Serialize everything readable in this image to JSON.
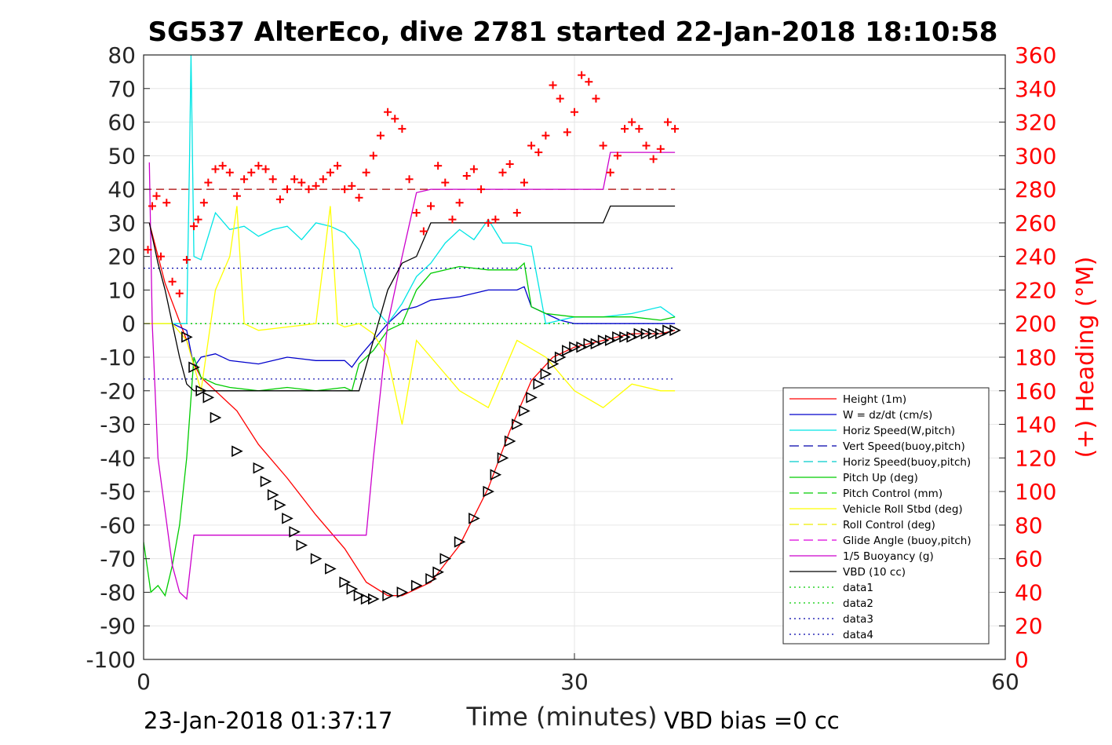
{
  "chart_data": {
    "type": "line",
    "title": "SG537 AlterEco, dive 2781 started 22-Jan-2018 18:10:58",
    "xlabel": "Time (minutes)",
    "ylabel_right": "(+) Heading (°M)",
    "footer_left": "23-Jan-2018 01:37:17",
    "footer_right": "VBD bias =0 cc",
    "xlim": [
      0,
      60
    ],
    "ylim": [
      -100,
      80
    ],
    "ylim_right": [
      0,
      360
    ],
    "x_ticks": [
      "0",
      "30",
      "60"
    ],
    "y_ticks": [
      "80",
      "70",
      "60",
      "50",
      "40",
      "30",
      "20",
      "10",
      "0",
      "-10",
      "-20",
      "-30",
      "-40",
      "-50",
      "-60",
      "-70",
      "-80",
      "-90",
      "-100"
    ],
    "y_ticks_right": [
      "360",
      "340",
      "320",
      "300",
      "280",
      "260",
      "240",
      "220",
      "200",
      "180",
      "160",
      "140",
      "120",
      "100",
      "80",
      "60",
      "40",
      "20",
      "0"
    ],
    "grid": true,
    "legend_position": "lower-right",
    "colors": {
      "height": "#ff0000",
      "w": "#0000cc",
      "horiz_speed": "#00e5e5",
      "vert_speed_buoy": "#0000aa",
      "horiz_speed_buoy": "#00cccc",
      "pitch_up": "#00cc00",
      "pitch_control": "#00cc00",
      "roll": "#ffff00",
      "roll_control": "#eeee00",
      "glide_angle": "#dd00dd",
      "buoyancy": "#cc00cc",
      "vbd": "#000000",
      "data1": "#00cc00",
      "data2": "#00cc00",
      "data3": "#0000aa",
      "data4": "#0000aa",
      "heading": "#ff0000",
      "heading_mean": "#aa0000"
    },
    "legend": [
      {
        "label": "Height (1m)",
        "color": "#ff0000",
        "dash": "solid"
      },
      {
        "label": "W = dz/dt (cm/s)",
        "color": "#0000cc",
        "dash": "solid"
      },
      {
        "label": "Horiz Speed(W,pitch)",
        "color": "#00e5e5",
        "dash": "solid"
      },
      {
        "label": "Vert Speed(buoy,pitch)",
        "color": "#0000aa",
        "dash": "dashed"
      },
      {
        "label": "Horiz Speed(buoy,pitch)",
        "color": "#00cccc",
        "dash": "dashed"
      },
      {
        "label": "Pitch Up (deg)",
        "color": "#00cc00",
        "dash": "solid"
      },
      {
        "label": "Pitch Control (mm)",
        "color": "#00cc00",
        "dash": "dashed"
      },
      {
        "label": "Vehicle Roll Stbd (deg)",
        "color": "#ffff00",
        "dash": "solid"
      },
      {
        "label": "Roll Control (deg)",
        "color": "#eeee00",
        "dash": "dashed"
      },
      {
        "label": "Glide Angle (buoy,pitch)",
        "color": "#dd00dd",
        "dash": "dashed"
      },
      {
        "label": "1/5 Buoyancy (g)",
        "color": "#cc00cc",
        "dash": "solid"
      },
      {
        "label": "VBD (10 cc)",
        "color": "#000000",
        "dash": "solid"
      },
      {
        "label": "data1",
        "color": "#00cc00",
        "dash": "dotted"
      },
      {
        "label": "data2",
        "color": "#00cc00",
        "dash": "dotted"
      },
      {
        "label": "data3",
        "color": "#0000aa",
        "dash": "dotted"
      },
      {
        "label": "data4",
        "color": "#0000aa",
        "dash": "dotted"
      }
    ],
    "series": [
      {
        "name": "Height (1m)",
        "x": [
          0.4,
          1.5,
          3,
          3.5,
          4,
          5,
          6.5,
          8,
          10,
          12,
          14,
          15.5,
          17,
          18,
          20,
          22,
          24,
          25.5,
          27,
          28.5,
          30,
          31,
          32,
          33,
          34,
          35,
          36,
          37
        ],
        "y": [
          30,
          12,
          -5,
          -12,
          -16,
          -20,
          -26,
          -36,
          -46,
          -57,
          -67,
          -77,
          -81,
          -81,
          -77,
          -66,
          -49,
          -32,
          -17,
          -10,
          -7,
          -6,
          -5,
          -4,
          -3,
          -3,
          -3,
          -2
        ]
      },
      {
        "name": "W = dz/dt (cm/s)",
        "x": [
          0,
          1,
          2,
          3,
          3.5,
          4,
          5,
          6,
          8,
          10,
          12,
          14,
          14.5,
          15,
          16,
          17,
          18,
          19,
          20,
          22,
          24,
          26,
          26.5,
          27,
          28,
          29,
          30,
          31,
          32,
          33,
          34,
          35,
          37
        ],
        "y": [
          0,
          0,
          0,
          -2,
          -13,
          -10,
          -9,
          -11,
          -12,
          -10,
          -11,
          -11,
          -13,
          -10,
          -5,
          0,
          4,
          5,
          7,
          8,
          10,
          10,
          11,
          5,
          3,
          1,
          0,
          0,
          0,
          0,
          0,
          0,
          0
        ]
      },
      {
        "name": "Horiz Speed(W,pitch)",
        "x": [
          0,
          2,
          3,
          3.2,
          3.3,
          3.5,
          4,
          5,
          6,
          7,
          8,
          9,
          10,
          11,
          12,
          13,
          14,
          15,
          16,
          17,
          18,
          19,
          20,
          21,
          22,
          23,
          24,
          25,
          26,
          27,
          28,
          30,
          32,
          34,
          36,
          37
        ],
        "y": [
          0,
          0,
          0,
          50,
          80,
          20,
          19,
          33,
          28,
          29,
          26,
          28,
          29,
          25,
          30,
          29,
          27,
          22,
          5,
          0,
          6,
          14,
          18,
          24,
          28,
          25,
          31,
          24,
          24,
          23,
          0,
          2,
          2,
          3,
          5,
          2
        ]
      },
      {
        "name": "Pitch Up (deg)",
        "x": [
          0,
          0.5,
          1,
          1.5,
          2,
          2.5,
          3,
          3.5,
          4,
          5,
          6,
          8,
          10,
          12,
          14,
          14.5,
          15,
          16,
          17,
          18,
          19,
          20,
          22,
          24,
          26,
          26.5,
          27,
          28,
          30,
          32,
          34,
          36,
          37
        ],
        "y": [
          -65,
          -80,
          -78,
          -81,
          -72,
          -60,
          -40,
          -10,
          -16,
          -18,
          -19,
          -20,
          -19,
          -20,
          -19,
          -20,
          -12,
          -8,
          -2,
          0,
          10,
          15,
          17,
          16,
          16,
          18,
          5,
          3,
          2,
          2,
          2,
          1,
          2
        ]
      },
      {
        "name": "Vehicle Roll Stbd (deg)",
        "x": [
          0,
          1,
          2,
          3,
          4,
          5,
          6,
          6.5,
          7,
          8,
          10,
          12,
          13,
          13.5,
          14,
          15,
          16,
          17,
          18,
          19,
          20,
          22,
          24,
          26,
          28,
          30,
          32,
          34,
          36,
          37
        ],
        "y": [
          0,
          0,
          0,
          -5,
          -20,
          10,
          20,
          35,
          0,
          -2,
          -1,
          0,
          35,
          0,
          -1,
          0,
          -3,
          -10,
          -30,
          -5,
          -10,
          -20,
          -25,
          -5,
          -10,
          -20,
          -25,
          -18,
          -20,
          -20
        ]
      },
      {
        "name": "1/5 Buoyancy (g)",
        "x": [
          0.4,
          0.6,
          1,
          2,
          2.5,
          3,
          3.5,
          4,
          6,
          8,
          10,
          12,
          14,
          15,
          15.5,
          16,
          17,
          18,
          19,
          20,
          22,
          24,
          26,
          28,
          30,
          32,
          32.5,
          34,
          36,
          37
        ],
        "y": [
          48,
          0,
          -40,
          -72,
          -80,
          -82,
          -63,
          -63,
          -63,
          -63,
          -63,
          -63,
          -63,
          -63,
          -63,
          -40,
          0,
          20,
          39,
          40,
          40,
          40,
          40,
          40,
          40,
          40,
          51,
          51,
          51,
          51
        ]
      },
      {
        "name": "VBD (10 cc)",
        "x": [
          0.4,
          1,
          1.5,
          2,
          2.5,
          3,
          3.5,
          4,
          6,
          8,
          10,
          12,
          14,
          14.5,
          15,
          16,
          17,
          18,
          19,
          20,
          22,
          24,
          26,
          28,
          30,
          32,
          32.5,
          34,
          36,
          37
        ],
        "y": [
          30,
          18,
          10,
          0,
          -10,
          -18,
          -20,
          -20,
          -20,
          -20,
          -20,
          -20,
          -20,
          -20,
          -20,
          -5,
          10,
          18,
          20,
          30,
          30,
          30,
          30,
          30,
          30,
          30,
          35,
          35,
          35,
          35
        ]
      }
    ],
    "dotted_refs": [
      {
        "name": "data1",
        "y": 0
      },
      {
        "name": "data2",
        "y": 0
      },
      {
        "name": "data3",
        "y": 16.5
      },
      {
        "name": "data4",
        "y": -16.5
      }
    ],
    "heading_mean": 280,
    "heading": {
      "x": [
        0.3,
        0.6,
        0.9,
        1.2,
        1.6,
        2,
        2.5,
        3,
        3.5,
        3.8,
        4.2,
        4.5,
        5,
        5.5,
        6,
        6.5,
        7,
        7.5,
        8,
        8.5,
        9,
        9.5,
        10,
        10.5,
        11,
        11.5,
        12,
        12.5,
        13,
        13.5,
        14,
        14.5,
        15,
        15.5,
        16,
        16.5,
        17,
        17.5,
        18,
        18.5,
        19,
        19.5,
        20,
        20.5,
        21,
        21.5,
        22,
        22.5,
        23,
        23.5,
        24,
        24.5,
        25,
        25.5,
        26,
        26.5,
        27,
        27.5,
        28,
        28.5,
        29,
        29.5,
        30,
        30.5,
        31,
        31.5,
        32,
        32.5,
        33,
        33.5,
        34,
        34.5,
        35,
        35.5,
        36,
        36.5,
        37
      ],
      "y": [
        244,
        270,
        276,
        240,
        272,
        225,
        218,
        238,
        258,
        262,
        272,
        284,
        292,
        294,
        290,
        276,
        286,
        290,
        294,
        292,
        286,
        274,
        280,
        286,
        284,
        280,
        282,
        286,
        290,
        294,
        280,
        282,
        275,
        290,
        300,
        312,
        326,
        322,
        316,
        286,
        266,
        255,
        270,
        294,
        284,
        262,
        272,
        288,
        292,
        280,
        260,
        262,
        290,
        295,
        266,
        284,
        306,
        302,
        312,
        342,
        334,
        314,
        326,
        348,
        344,
        334,
        306,
        290,
        300,
        316,
        320,
        316,
        306,
        298,
        304,
        320,
        316
      ]
    },
    "markers": {
      "x": [
        3,
        3.5,
        4,
        4.5,
        5,
        6.5,
        8,
        8.5,
        9,
        9.5,
        10,
        10.5,
        11,
        12,
        13,
        14,
        14.5,
        15,
        15.5,
        16,
        17,
        18,
        19,
        20,
        20.5,
        21,
        22,
        23,
        24,
        24.5,
        25,
        25.5,
        26,
        26.5,
        27,
        27.5,
        28,
        28.5,
        29,
        29.5,
        30,
        30.5,
        31,
        31.5,
        32,
        32.5,
        33,
        33.5,
        34,
        34.5,
        35,
        35.5,
        36,
        36.5,
        37
      ],
      "y": [
        -4,
        -13,
        -20,
        -22,
        -28,
        -38,
        -43,
        -47,
        -51,
        -54,
        -58,
        -62,
        -66,
        -70,
        -73,
        -77,
        -79,
        -81,
        -82,
        -82,
        -81,
        -80,
        -78,
        -76,
        -74,
        -70,
        -65,
        -58,
        -50,
        -45,
        -40,
        -35,
        -30,
        -26,
        -22,
        -18,
        -15,
        -12,
        -10,
        -8,
        -7,
        -7,
        -6,
        -6,
        -5,
        -5,
        -4,
        -4,
        -4,
        -3,
        -3,
        -3,
        -3,
        -2,
        -2
      ]
    }
  }
}
